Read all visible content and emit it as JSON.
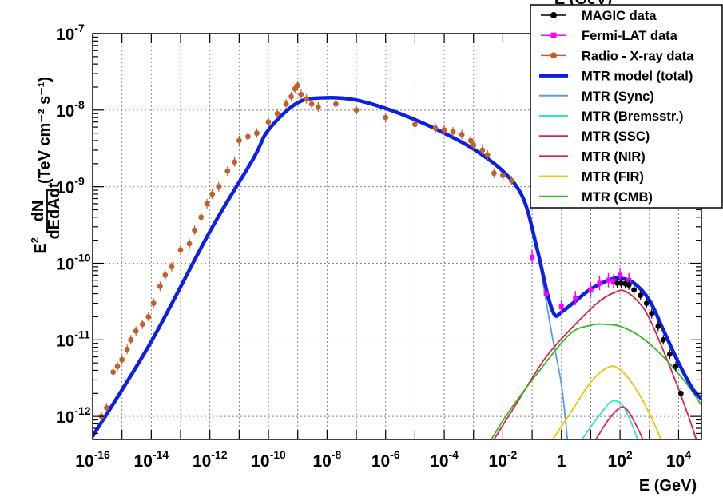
{
  "chart_data": {
    "type": "line",
    "xlabel": "E (GeV)",
    "xlabel_top": "E (GeV)",
    "ylabel_prefix": "E",
    "ylabel_sup": "2",
    "ylabel_frac_num": "dN",
    "ylabel_frac_den": "dEdAdt",
    "ylabel_units": "(TeV cm⁻² s⁻¹)",
    "x_scale": "log",
    "y_scale": "log",
    "xlim": [
      1e-16,
      60000
    ],
    "ylim": [
      5e-13,
      1e-07
    ],
    "grid": true,
    "legend_position": "top-right",
    "x_ticks": [
      {
        "value": 1e-16,
        "base": "10",
        "exp": "-16"
      },
      {
        "value": 1e-14,
        "base": "10",
        "exp": "-14"
      },
      {
        "value": 1e-12,
        "base": "10",
        "exp": "-12"
      },
      {
        "value": 1e-10,
        "base": "10",
        "exp": "-10"
      },
      {
        "value": 1e-08,
        "base": "10",
        "exp": "-8"
      },
      {
        "value": 1e-06,
        "base": "10",
        "exp": "-6"
      },
      {
        "value": 0.0001,
        "base": "10",
        "exp": "-4"
      },
      {
        "value": 0.01,
        "base": "10",
        "exp": "-2"
      },
      {
        "value": 1,
        "base": "1",
        "exp": ""
      },
      {
        "value": 100,
        "base": "10",
        "exp": "2"
      },
      {
        "value": 10000,
        "base": "10",
        "exp": "4"
      }
    ],
    "y_ticks": [
      {
        "value": 1e-12,
        "base": "10",
        "exp": "-12"
      },
      {
        "value": 1e-11,
        "base": "10",
        "exp": "-11"
      },
      {
        "value": 1e-10,
        "base": "10",
        "exp": "-10"
      },
      {
        "value": 1e-09,
        "base": "10",
        "exp": "-9"
      },
      {
        "value": 1e-08,
        "base": "10",
        "exp": "-8"
      },
      {
        "value": 1e-07,
        "base": "10",
        "exp": "-7"
      }
    ],
    "series": [
      {
        "name": "MTR model (total)",
        "color": "#0b1fe6",
        "style": "line",
        "width": 4.5,
        "points": [
          [
            1e-16,
            5.5e-13
          ],
          [
            1e-14,
            9.5e-12
          ],
          [
            1e-12,
            2.6e-10
          ],
          [
            3e-11,
            2.3e-09
          ],
          [
            1e-10,
            5.5e-09
          ],
          [
            1e-09,
            1.25e-08
          ],
          [
            1e-08,
            1.45e-08
          ],
          [
            1e-07,
            1.35e-08
          ],
          [
            1e-06,
            1.05e-08
          ],
          [
            1e-05,
            7.5e-09
          ],
          [
            0.0001,
            5e-09
          ],
          [
            0.001,
            3.1e-09
          ],
          [
            0.01,
            1.6e-09
          ],
          [
            0.05,
            7e-10
          ],
          [
            0.15,
            1.5e-10
          ],
          [
            0.35,
            3.7e-11
          ],
          [
            0.6,
            2.1e-11
          ],
          [
            1,
            2.3e-11
          ],
          [
            3,
            3.2e-11
          ],
          [
            10,
            4.6e-11
          ],
          [
            50,
            6.2e-11
          ],
          [
            100,
            6.4e-11
          ],
          [
            300,
            5.5e-11
          ],
          [
            1000,
            3.3e-11
          ],
          [
            3000,
            1.35e-11
          ],
          [
            10000,
            5e-12
          ],
          [
            30000,
            2.3e-12
          ],
          [
            60000,
            1.7e-12
          ]
        ]
      },
      {
        "name": "MTR (Sync)",
        "color": "#5b9bef",
        "style": "line",
        "width": 1.8,
        "points": [
          [
            0.01,
            1.6e-09
          ],
          [
            0.05,
            6.9e-10
          ],
          [
            0.15,
            1.45e-10
          ],
          [
            0.3,
            3.2e-11
          ],
          [
            0.5,
            1.05e-11
          ],
          [
            1,
            2.6e-12
          ],
          [
            1.6,
            5e-13
          ]
        ]
      },
      {
        "name": "MTR (Bremsstr.)",
        "color": "#2ee6d0",
        "style": "line",
        "width": 1.8,
        "points": [
          [
            5,
            5e-13
          ],
          [
            15,
            9e-13
          ],
          [
            40,
            1.45e-12
          ],
          [
            70,
            1.6e-12
          ],
          [
            130,
            1.35e-12
          ],
          [
            250,
            8e-13
          ],
          [
            400,
            5e-13
          ]
        ]
      },
      {
        "name": "MTR (SSC)",
        "color": "#e0205a",
        "style": "line",
        "width": 1.8,
        "points": [
          [
            15,
            5e-13
          ],
          [
            40,
            9e-13
          ],
          [
            100,
            1.3e-12
          ],
          [
            180,
            1.2e-12
          ],
          [
            400,
            7e-13
          ],
          [
            600,
            5e-13
          ]
        ]
      },
      {
        "name": "MTR (NIR)",
        "color": "#e0204a",
        "style": "line",
        "width": 1.8,
        "points": [
          [
            0.005,
            5e-13
          ],
          [
            0.03,
            1.5e-12
          ],
          [
            0.3,
            6e-12
          ],
          [
            3,
            1.6e-11
          ],
          [
            20,
            3.2e-11
          ],
          [
            80,
            4.3e-11
          ],
          [
            150,
            4.3e-11
          ],
          [
            400,
            3.2e-11
          ],
          [
            1000,
            1.9e-11
          ],
          [
            5000,
            4.5e-12
          ],
          [
            20000,
            1.1e-12
          ],
          [
            40000,
            5e-13
          ]
        ]
      },
      {
        "name": "MTR (FIR)",
        "color": "#f7c200",
        "style": "line",
        "width": 1.8,
        "points": [
          [
            0.5,
            5e-13
          ],
          [
            2,
            1.1e-12
          ],
          [
            10,
            2.8e-12
          ],
          [
            40,
            4.4e-12
          ],
          [
            100,
            4.1e-12
          ],
          [
            300,
            2.5e-12
          ],
          [
            1000,
            1.1e-12
          ],
          [
            2500,
            5e-13
          ]
        ]
      },
      {
        "name": "MTR (CMB)",
        "color": "#2cbf1f",
        "style": "line",
        "width": 1.8,
        "points": [
          [
            0.004,
            5e-13
          ],
          [
            0.02,
            1.3e-12
          ],
          [
            0.2,
            4.2e-12
          ],
          [
            2,
            1.2e-11
          ],
          [
            10,
            1.55e-11
          ],
          [
            30,
            1.6e-11
          ],
          [
            100,
            1.5e-11
          ],
          [
            500,
            1.1e-11
          ],
          [
            3000,
            6e-12
          ],
          [
            20000,
            2.6e-12
          ],
          [
            60000,
            1.4e-12
          ]
        ]
      },
      {
        "name": "Radio - X-ray data",
        "color": "#c1602c",
        "style": "points",
        "marker": "circle",
        "points": [
          [
            2e-16,
            1e-12
          ],
          [
            3e-16,
            1.3e-12
          ],
          [
            5e-16,
            3.8e-12
          ],
          [
            7e-16,
            4.5e-12
          ],
          [
            1e-15,
            5.5e-12
          ],
          [
            1.5e-15,
            7.5e-12
          ],
          [
            2e-15,
            1e-11
          ],
          [
            3e-15,
            1.3e-11
          ],
          [
            5e-15,
            1.6e-11
          ],
          [
            8e-15,
            2e-11
          ],
          [
            1.2e-14,
            3e-11
          ],
          [
            2e-14,
            5e-11
          ],
          [
            3e-14,
            7e-11
          ],
          [
            5e-14,
            9e-11
          ],
          [
            1e-13,
            1.5e-10
          ],
          [
            2e-13,
            1.8e-10
          ],
          [
            3e-13,
            2.7e-10
          ],
          [
            5e-13,
            4e-10
          ],
          [
            8e-13,
            6e-10
          ],
          [
            1.2e-12,
            8e-10
          ],
          [
            2e-12,
            1e-09
          ],
          [
            4e-12,
            1.6e-09
          ],
          [
            7e-12,
            2.1e-09
          ],
          [
            1e-11,
            4e-09
          ],
          [
            2e-11,
            4.5e-09
          ],
          [
            4e-11,
            5e-09
          ],
          [
            1e-10,
            7e-09
          ],
          [
            2e-10,
            9e-09
          ],
          [
            4e-10,
            1.2e-08
          ],
          [
            6e-10,
            1.5e-08
          ],
          [
            8e-10,
            1.9e-08
          ],
          [
            1e-09,
            2.1e-08
          ],
          [
            1.3e-09,
            1.6e-08
          ],
          [
            2e-09,
            1.4e-08
          ],
          [
            3e-09,
            1.2e-08
          ],
          [
            5e-09,
            1.1e-08
          ],
          [
            2e-08,
            1.2e-08
          ],
          [
            1e-07,
            1e-08
          ],
          [
            1e-06,
            8e-09
          ],
          [
            1e-05,
            6.5e-09
          ],
          [
            5e-05,
            5.8e-09
          ],
          [
            0.0001,
            5.5e-09
          ],
          [
            0.0002,
            5.2e-09
          ],
          [
            0.0004,
            4.8e-09
          ],
          [
            0.0008,
            4e-09
          ],
          [
            0.001,
            3.5e-09
          ],
          [
            0.002,
            3e-09
          ],
          [
            0.003,
            2.6e-09
          ],
          [
            0.005,
            1.5e-09
          ],
          [
            0.01,
            1.4e-09
          ],
          [
            0.02,
            1.2e-09
          ]
        ]
      },
      {
        "name": "Fermi-LAT data",
        "color": "#ff00ff",
        "style": "points",
        "marker": "square",
        "points": [
          [
            0.1,
            1.2e-10
          ],
          [
            0.3,
            4e-11
          ],
          [
            1,
            2.7e-11
          ],
          [
            3,
            3.5e-11
          ],
          [
            10,
            4.5e-11
          ],
          [
            20,
            5.5e-11
          ],
          [
            40,
            6e-11
          ],
          [
            60,
            5.8e-11
          ],
          [
            100,
            7e-11
          ],
          [
            200,
            6e-11
          ]
        ]
      },
      {
        "name": "MAGIC data",
        "color": "#000000",
        "style": "points",
        "marker": "circle",
        "points": [
          [
            80,
            5.5e-11
          ],
          [
            110,
            5.5e-11
          ],
          [
            150,
            5.4e-11
          ],
          [
            200,
            5.2e-11
          ],
          [
            300,
            4.5e-11
          ],
          [
            500,
            3.8e-11
          ],
          [
            800,
            3e-11
          ],
          [
            1200,
            2.2e-11
          ],
          [
            2000,
            1.5e-11
          ],
          [
            3000,
            1e-11
          ],
          [
            5000,
            6.5e-12
          ],
          [
            8000,
            4.5e-12
          ],
          [
            12000,
            2e-12
          ]
        ]
      }
    ],
    "legend": [
      {
        "label": "MAGIC data",
        "color": "#000000",
        "kind": "point-circle"
      },
      {
        "label": "Fermi-LAT data",
        "color": "#ff00ff",
        "kind": "point-square"
      },
      {
        "label": "Radio - X-ray data",
        "color": "#c1602c",
        "kind": "point-circle"
      },
      {
        "label": "MTR model (total)",
        "color": "#0b1fe6",
        "kind": "line-thick"
      },
      {
        "label": "MTR (Sync)",
        "color": "#5b9bef",
        "kind": "line"
      },
      {
        "label": "MTR (Bremsstr.)",
        "color": "#2ee6d0",
        "kind": "line"
      },
      {
        "label": "MTR (SSC)",
        "color": "#e0205a",
        "kind": "line"
      },
      {
        "label": "MTR (NIR)",
        "color": "#e0204a",
        "kind": "line"
      },
      {
        "label": "MTR (FIR)",
        "color": "#f7c200",
        "kind": "line"
      },
      {
        "label": "MTR (CMB)",
        "color": "#2cbf1f",
        "kind": "line"
      }
    ]
  }
}
